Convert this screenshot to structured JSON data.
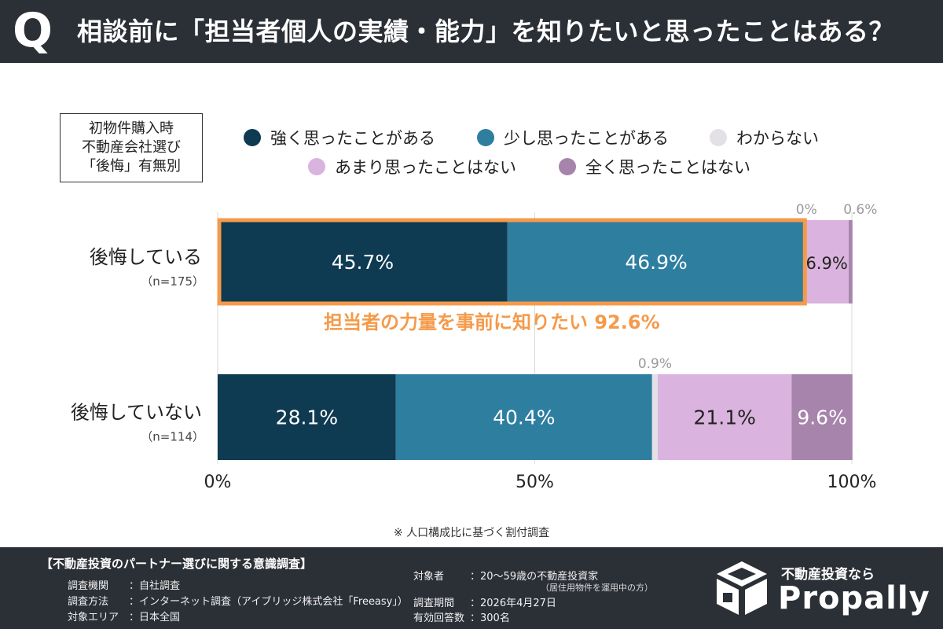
{
  "header": {
    "q_mark": "Q",
    "question": "相談前に「担当者個人の実績・能力」を知りたいと思ったことはある？"
  },
  "legend": {
    "title": "初物件購入時\n不動産会社選び\n「後悔」有無別",
    "items": [
      {
        "label": "強く思ったことがある",
        "color": "#0e3a52"
      },
      {
        "label": "少し思ったことがある",
        "color": "#2e7ea0"
      },
      {
        "label": "わからない",
        "color": "#e3e1e6"
      },
      {
        "label": "あまり思ったことはない",
        "color": "#dab3de"
      },
      {
        "label": "全く思ったことはない",
        "color": "#a784ac"
      }
    ]
  },
  "chart_data": {
    "type": "bar",
    "orientation": "horizontal",
    "stacked": true,
    "categories": [
      "後悔している",
      "後悔していない"
    ],
    "category_notes": [
      "（n=175）",
      "（n=114）"
    ],
    "series": [
      {
        "name": "強く思ったことがある",
        "values": [
          45.7,
          28.1
        ],
        "labels": [
          "45.7%",
          "28.1%"
        ]
      },
      {
        "name": "少し思ったことがある",
        "values": [
          46.9,
          40.4
        ],
        "labels": [
          "46.9%",
          "40.4%"
        ]
      },
      {
        "name": "わからない",
        "values": [
          0,
          0.9
        ],
        "labels": [
          "0%",
          "0.9%"
        ]
      },
      {
        "name": "あまり思ったことはない",
        "values": [
          6.9,
          21.1
        ],
        "labels": [
          "6.9%",
          "21.1%"
        ]
      },
      {
        "name": "全く思ったことはない",
        "values": [
          0.6,
          9.6
        ],
        "labels": [
          "0.6%",
          "9.6%"
        ]
      }
    ],
    "xlim": [
      0,
      100
    ],
    "xticks": [
      "0%",
      "50%",
      "100%"
    ],
    "highlight": {
      "text": "担当者の力量を事前に知りたい 92.6%",
      "value": 92.6,
      "color": "#f59a4a"
    },
    "grid": true
  },
  "footnote": "※ 人口構成比に基づく割付調査",
  "footer": {
    "survey_title": "【不動産投資のパートナー選びに関する意識調査】",
    "rows_left": [
      {
        "key": "調査機関",
        "value": "：自社調査"
      },
      {
        "key": "調査方法",
        "value": "：インターネット調査（アイブリッジ株式会社「Freeasy」）"
      },
      {
        "key": "対象エリア",
        "value": "：日本全国"
      }
    ],
    "rows_right": [
      {
        "key": "対象者",
        "value": "：20～59歳の不動産投資家"
      },
      {
        "key": "調査期間",
        "value": "：2026年4月27日"
      },
      {
        "key": "有効回答数",
        "value": "：300名"
      }
    ],
    "target_note": "（居住用物件を運用中の方）",
    "logo_tagline": "不動産投資なら",
    "logo_name": "Propally"
  }
}
